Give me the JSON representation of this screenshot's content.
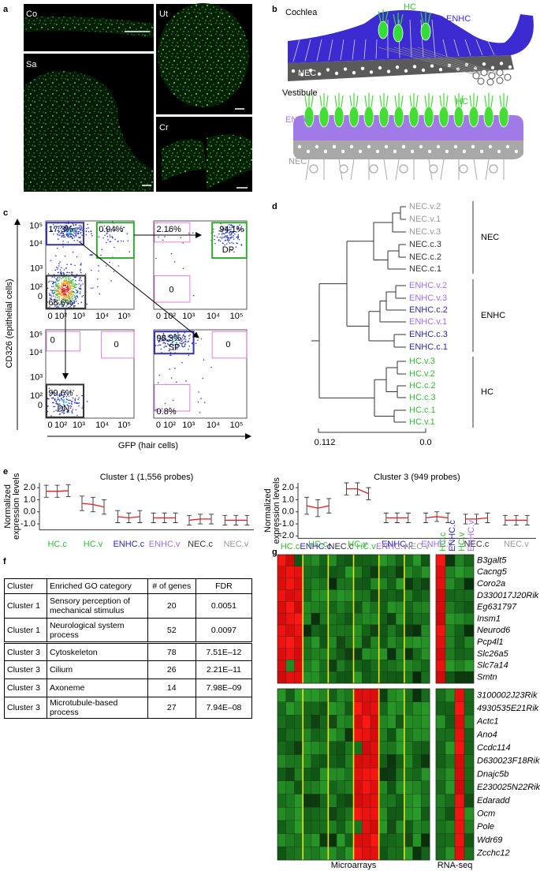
{
  "panels": {
    "a": {
      "letter": "a",
      "images": [
        "Co",
        "Sa",
        "Ut",
        "Cr"
      ]
    },
    "b": {
      "letter": "b",
      "cochlea": {
        "title": "Cochlea",
        "hc": "HC",
        "enhc": "ENHC",
        "nec": "NEC"
      },
      "vestibule": {
        "title": "Vestibule",
        "hc": "HC",
        "enhc": "ENHC",
        "nec": "NEC"
      }
    },
    "c": {
      "letter": "c",
      "ylabel": "CD326 (epithelial cells)",
      "xlabel": "GFP (hair cells)",
      "yticks": [
        "10⁵",
        "10⁴",
        "10³",
        "10²",
        "0"
      ],
      "xticks": [
        "0",
        "10²",
        "10³",
        "10⁴",
        "10⁵"
      ],
      "plots": [
        {
          "gates": [
            "17.3%",
            "0.94%",
            "68.6%"
          ]
        },
        {
          "gates": [
            "2.16%",
            "94.1%",
            "0"
          ],
          "tag": "DP"
        },
        {
          "gates": [
            "0",
            "0",
            "99.6%"
          ],
          "tag": "DN"
        },
        {
          "gates": [
            "98.3%",
            "0",
            "0.8%"
          ],
          "tag": "SP"
        }
      ]
    },
    "d": {
      "letter": "d",
      "leaves": [
        "NEC.v.2",
        "NEC.v.1",
        "NEC.v.3",
        "NEC.c.3",
        "NEC.c.2",
        "NEC.c.1",
        "ENHC.v.2",
        "ENHC.v.3",
        "ENHC.c.2",
        "ENHC.v.1",
        "ENHC.c.3",
        "ENHC.c.1",
        "HC.v.3",
        "HC.v.2",
        "HC.c.2",
        "HC.c.3",
        "HC.c.1",
        "HC.v.1"
      ],
      "groups": [
        "NEC",
        "ENHC",
        "HC"
      ],
      "scale": [
        "0.112",
        "0.0"
      ]
    },
    "e": {
      "letter": "e"
    },
    "f": {
      "letter": "f",
      "table": {
        "header": [
          "Cluster",
          "Enriched GO category",
          "# of genes",
          "FDR"
        ],
        "rows": [
          [
            "Cluster 1",
            "Sensory perception of mechanical stimulus",
            "20",
            "0.0051"
          ],
          [
            "Cluster 1",
            "Neurological system process",
            "52",
            "0.0097"
          ],
          [
            "Cluster 3",
            "Cytoskeleton",
            "78",
            "7.51E–12"
          ],
          [
            "Cluster 3",
            "Cilium",
            "26",
            "2.21E–11"
          ],
          [
            "Cluster 3",
            "Axoneme",
            "14",
            "7.98E–09"
          ],
          [
            "Cluster 3",
            "Microtubule-based process",
            "27",
            "7.94E–08"
          ]
        ]
      }
    },
    "g": {
      "letter": "g",
      "groups": [
        "HC.c",
        "ENHC.c",
        "NEC.c",
        "HC.v",
        "ENHC.v",
        "NEC.v"
      ],
      "rnaseq_groups": [
        "HC.c",
        "ENHC.c",
        "HC.v",
        "ENHC.v"
      ],
      "genes_top": [
        "B3galt5",
        "Cacng5",
        "Coro2a",
        "D330017J20Rik",
        "Eg631797",
        "Insm1",
        "Neurod6",
        "Pcp4l1",
        "Slc26a5",
        "Slc7a14",
        "Smtn"
      ],
      "genes_bottom": [
        "3100002J23Rik",
        "4930535E21Rik",
        "Actc1",
        "Ano4",
        "Ccdc114",
        "D630023F18Rik",
        "Dnajc5b",
        "E230025N22Rik",
        "Edaradd",
        "Ocm",
        "Pole",
        "Wdr69",
        "Zcchc12"
      ],
      "microarrays": "Microarrays",
      "rnaseq": "RNA-seq"
    }
  },
  "chart_data": [
    {
      "type": "line",
      "title": "Cluster 1 (1,556 probes)",
      "ylabel": [
        "Normalized",
        "expression levels"
      ],
      "categories": [
        "HC.c",
        "HC.v",
        "ENHC.c",
        "ENHC.v",
        "NEC.c",
        "NEC.v"
      ],
      "colors": [
        "#33bb33",
        "#33bb33",
        "#2a2aa0",
        "#a070e0",
        "#333333",
        "#999999"
      ],
      "color": "#e02020",
      "values": [
        [
          1.7,
          1.7,
          1.75
        ],
        [
          0.7,
          0.6,
          0.4
        ],
        [
          -0.4,
          -0.5,
          -0.4
        ],
        [
          -0.5,
          -0.5,
          -0.5
        ],
        [
          -0.7,
          -0.6,
          -0.6
        ],
        [
          -0.7,
          -0.7,
          -0.7
        ]
      ],
      "errors": [
        [
          0.5,
          0.5,
          0.5
        ],
        [
          0.6,
          0.6,
          0.6
        ],
        [
          0.5,
          0.4,
          0.5
        ],
        [
          0.4,
          0.4,
          0.4
        ],
        [
          0.4,
          0.4,
          0.4
        ],
        [
          0.4,
          0.4,
          0.4
        ]
      ],
      "ylim": [
        -1.5,
        2.4
      ],
      "yticks": [
        {
          "value": 2,
          "label": "2.0"
        },
        {
          "value": 1,
          "label": "1.0"
        },
        {
          "value": 0,
          "label": "0.0"
        },
        {
          "value": -1,
          "label": "-1.0"
        }
      ]
    },
    {
      "type": "line",
      "title": "Cluster 3 (949 probes)",
      "ylabel": [
        "Normalized",
        "expression levels"
      ],
      "categories": [
        "HC.c",
        "HC.v",
        "ENHC.c",
        "ENHC.v",
        "NEC.c",
        "NEC.v"
      ],
      "colors": [
        "#33bb33",
        "#33bb33",
        "#2a2aa0",
        "#a070e0",
        "#333333",
        "#999999"
      ],
      "color": "#e02020",
      "values": [
        [
          0.5,
          0.3,
          0.5
        ],
        [
          1.9,
          1.9,
          1.5
        ],
        [
          -0.5,
          -0.5,
          -0.5
        ],
        [
          -0.5,
          -0.4,
          -0.5
        ],
        [
          -0.6,
          -0.6,
          -0.5
        ],
        [
          -0.7,
          -0.7,
          -0.7
        ]
      ],
      "errors": [
        [
          0.7,
          0.7,
          0.6
        ],
        [
          0.5,
          0.5,
          0.5
        ],
        [
          0.4,
          0.4,
          0.4
        ],
        [
          0.4,
          0.4,
          0.4
        ],
        [
          0.4,
          0.4,
          0.4
        ],
        [
          0.4,
          0.4,
          0.4
        ]
      ],
      "ylim": [
        -2.2,
        2.4
      ],
      "yticks": [
        {
          "value": 2,
          "label": "2.0"
        },
        {
          "value": 1,
          "label": "1.0"
        },
        {
          "value": 0,
          "label": "0.0"
        },
        {
          "value": -1,
          "label": "-1.0"
        },
        {
          "value": -2,
          "label": "-2.0"
        }
      ]
    }
  ]
}
